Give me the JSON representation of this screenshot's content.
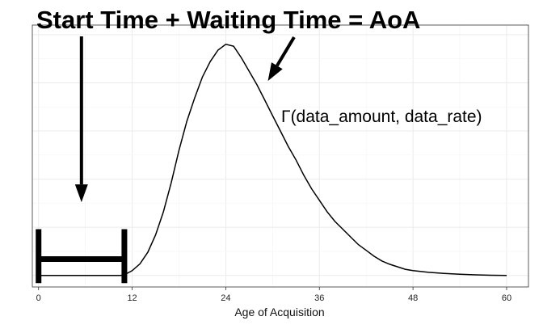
{
  "chart_data": {
    "type": "line",
    "title": "Start Time + Waiting Time = AoA",
    "xlabel": "Age of Acquisition",
    "ylabel": "",
    "xlim": [
      -0.8,
      62.8
    ],
    "ylim": [
      -0.006,
      0.13
    ],
    "x_ticks": [
      0,
      12,
      24,
      36,
      48,
      60
    ],
    "grid": true,
    "series": [
      {
        "name": "",
        "x": [
          0,
          10.5,
          11,
          12,
          13,
          14,
          15,
          16,
          17,
          18,
          19,
          20,
          21,
          22,
          23,
          24,
          25,
          26,
          27,
          28,
          29,
          30,
          31,
          32,
          33,
          34,
          35,
          36,
          37,
          38,
          39,
          40,
          41,
          42,
          43,
          44,
          45,
          46,
          47,
          48,
          50,
          52,
          54,
          56,
          58,
          60
        ],
        "y": [
          0,
          0,
          0.0003,
          0.0025,
          0.006,
          0.012,
          0.021,
          0.033,
          0.048,
          0.065,
          0.08,
          0.092,
          0.103,
          0.111,
          0.117,
          0.12,
          0.119,
          0.113,
          0.106,
          0.099,
          0.091,
          0.083,
          0.075,
          0.067,
          0.06,
          0.052,
          0.045,
          0.039,
          0.033,
          0.028,
          0.024,
          0.02,
          0.016,
          0.013,
          0.01,
          0.0075,
          0.0058,
          0.0045,
          0.0032,
          0.0025,
          0.0016,
          0.001,
          0.0006,
          0.0003,
          0.0001,
          0
        ]
      }
    ],
    "start_interval": {
      "x_start": 0,
      "x_end": 11
    },
    "annotations": [
      {
        "text": "Γ(data_amount, data_rate)"
      }
    ]
  }
}
